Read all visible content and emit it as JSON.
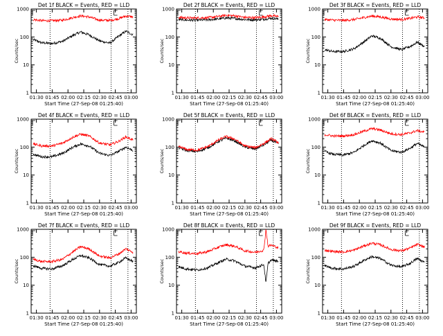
{
  "page": {
    "background": "#ffffff",
    "axis_color": "#000000",
    "events_color": "#000000",
    "lld_color": "#ff0000"
  },
  "chart_data": [
    {
      "type": "line",
      "title": "Det 1f BLACK = Events, RED = LLD",
      "xlabel": "Start Time (27-Sep-08 01:25:40)",
      "ylabel": "Counts/sec",
      "xticks": [
        "01:30",
        "01:45",
        "02:00",
        "02:15",
        "02:30",
        "02:45",
        "03:00"
      ],
      "yticks": [
        "1",
        "10",
        "100",
        "1000"
      ],
      "ylim": [
        1,
        1000
      ],
      "yscale": "log",
      "dotted_markers": [
        "01:43",
        "02:41",
        "02:57"
      ],
      "flag_marker": "02:45",
      "x": [
        "01:27",
        "01:35",
        "01:45",
        "01:55",
        "02:05",
        "02:12",
        "02:20",
        "02:30",
        "02:40",
        "02:48",
        "02:55",
        "03:02"
      ],
      "series": [
        {
          "name": "Events",
          "color": "#000000",
          "values": [
            80,
            62,
            58,
            70,
            115,
            150,
            120,
            72,
            60,
            105,
            160,
            120
          ]
        },
        {
          "name": "LLD",
          "color": "#ff0000",
          "values": [
            420,
            380,
            380,
            400,
            500,
            570,
            520,
            400,
            390,
            450,
            560,
            520
          ]
        }
      ]
    },
    {
      "type": "line",
      "title": "Det 2f BLACK = Events, RED = LLD",
      "xlabel": "Start Time (27-Sep-08 01:25:40)",
      "ylabel": "Counts/sec",
      "xticks": [
        "01:30",
        "01:45",
        "02:00",
        "02:15",
        "02:30",
        "02:45",
        "03:00"
      ],
      "yticks": [
        "1",
        "10",
        "100",
        "1000"
      ],
      "ylim": [
        1,
        1000
      ],
      "yscale": "log",
      "dotted_markers": [
        "01:43",
        "02:41",
        "02:57"
      ],
      "flag_marker": "02:45",
      "x": [
        "01:27",
        "01:35",
        "01:45",
        "01:55",
        "02:05",
        "02:12",
        "02:20",
        "02:30",
        "02:40",
        "02:48",
        "02:55",
        "03:02"
      ],
      "series": [
        {
          "name": "Events",
          "color": "#000000",
          "values": [
            420,
            400,
            400,
            410,
            440,
            480,
            460,
            420,
            410,
            430,
            470,
            440
          ]
        },
        {
          "name": "LLD",
          "color": "#ff0000",
          "values": [
            500,
            480,
            480,
            490,
            540,
            600,
            570,
            500,
            490,
            520,
            580,
            530
          ]
        }
      ]
    },
    {
      "type": "line",
      "title": "Det 3f BLACK = Events, RED = LLD",
      "xlabel": "Start Time (27-Sep-08 01:25:40)",
      "ylabel": "Counts/sec",
      "xticks": [
        "01:30",
        "01:45",
        "02:00",
        "02:15",
        "02:30",
        "02:45",
        "03:00"
      ],
      "yticks": [
        "1",
        "10",
        "100",
        "1000"
      ],
      "ylim": [
        1,
        1000
      ],
      "yscale": "log",
      "dotted_markers": [
        "01:43",
        "02:41",
        "02:57"
      ],
      "flag_marker": "02:45",
      "x": [
        "01:27",
        "01:35",
        "01:45",
        "01:55",
        "02:05",
        "02:12",
        "02:20",
        "02:30",
        "02:40",
        "02:48",
        "02:55",
        "03:02"
      ],
      "series": [
        {
          "name": "Events",
          "color": "#000000",
          "values": [
            35,
            30,
            30,
            38,
            70,
            110,
            90,
            45,
            35,
            45,
            65,
            45
          ]
        },
        {
          "name": "LLD",
          "color": "#ff0000",
          "values": [
            420,
            400,
            390,
            420,
            500,
            560,
            520,
            440,
            420,
            460,
            520,
            480
          ]
        }
      ]
    },
    {
      "type": "line",
      "title": "Det 4f BLACK = Events, RED = LLD",
      "xlabel": "Start Time (27-Sep-08 01:25:40)",
      "ylabel": "Counts/sec",
      "xticks": [
        "01:30",
        "01:45",
        "02:00",
        "02:15",
        "02:30",
        "02:45",
        "03:00"
      ],
      "yticks": [
        "1",
        "10",
        "100",
        "1000"
      ],
      "ylim": [
        1,
        1000
      ],
      "yscale": "log",
      "dotted_markers": [
        "01:43",
        "02:41",
        "02:57"
      ],
      "flag_marker": "02:45",
      "x": [
        "01:27",
        "01:35",
        "01:45",
        "01:55",
        "02:05",
        "02:12",
        "02:20",
        "02:30",
        "02:40",
        "02:48",
        "02:55",
        "03:02"
      ],
      "series": [
        {
          "name": "Events",
          "color": "#000000",
          "values": [
            55,
            45,
            45,
            60,
            100,
            130,
            110,
            60,
            50,
            70,
            100,
            75
          ]
        },
        {
          "name": "LLD",
          "color": "#ff0000",
          "values": [
            130,
            110,
            110,
            140,
            230,
            290,
            250,
            140,
            120,
            160,
            230,
            180
          ]
        }
      ]
    },
    {
      "type": "line",
      "title": "Det 5f BLACK = Events, RED = LLD",
      "xlabel": "Start Time (27-Sep-08 01:25:40)",
      "ylabel": "Counts/sec",
      "xticks": [
        "01:30",
        "01:45",
        "02:00",
        "02:15",
        "02:30",
        "02:45",
        "03:00"
      ],
      "yticks": [
        "1",
        "10",
        "100",
        "1000"
      ],
      "ylim": [
        1,
        1000
      ],
      "yscale": "log",
      "dotted_markers": [
        "01:43",
        "02:41",
        "02:57"
      ],
      "flag_marker": "02:45",
      "x": [
        "01:27",
        "01:35",
        "01:45",
        "01:55",
        "02:05",
        "02:12",
        "02:20",
        "02:30",
        "02:40",
        "02:48",
        "02:55",
        "03:02"
      ],
      "series": [
        {
          "name": "Events",
          "color": "#000000",
          "values": [
            95,
            75,
            70,
            95,
            160,
            210,
            170,
            100,
            85,
            120,
            180,
            130
          ]
        },
        {
          "name": "LLD",
          "color": "#ff0000",
          "values": [
            105,
            82,
            78,
            105,
            180,
            240,
            195,
            110,
            95,
            135,
            200,
            145
          ]
        }
      ]
    },
    {
      "type": "line",
      "title": "Det 6f BLACK = Events, RED = LLD",
      "xlabel": "Start Time (27-Sep-08 01:25:40)",
      "ylabel": "Counts/sec",
      "xticks": [
        "01:30",
        "01:45",
        "02:00",
        "02:15",
        "02:30",
        "02:45",
        "03:00"
      ],
      "yticks": [
        "1",
        "10",
        "100",
        "1000"
      ],
      "ylim": [
        1,
        1000
      ],
      "yscale": "log",
      "dotted_markers": [
        "01:43",
        "02:41",
        "02:57"
      ],
      "flag_marker": "02:45",
      "x": [
        "01:27",
        "01:35",
        "01:45",
        "01:55",
        "02:05",
        "02:12",
        "02:20",
        "02:30",
        "02:40",
        "02:48",
        "02:55",
        "03:02"
      ],
      "series": [
        {
          "name": "Events",
          "color": "#000000",
          "values": [
            70,
            55,
            52,
            65,
            120,
            170,
            140,
            75,
            65,
            90,
            135,
            100
          ]
        },
        {
          "name": "LLD",
          "color": "#ff0000",
          "values": [
            280,
            250,
            250,
            280,
            380,
            460,
            410,
            300,
            280,
            320,
            390,
            340
          ]
        }
      ]
    },
    {
      "type": "line",
      "title": "Det 7f BLACK = Events, RED = LLD",
      "xlabel": "Start Time (27-Sep-08 01:25:40)",
      "ylabel": "Counts/sec",
      "xticks": [
        "01:30",
        "01:45",
        "02:00",
        "02:15",
        "02:30",
        "02:45",
        "03:00"
      ],
      "yticks": [
        "1",
        "10",
        "100",
        "1000"
      ],
      "ylim": [
        1,
        1000
      ],
      "yscale": "log",
      "dotted_markers": [
        "01:43",
        "02:41",
        "02:57"
      ],
      "flag_marker": "02:45",
      "x": [
        "01:27",
        "01:35",
        "01:45",
        "01:55",
        "02:05",
        "02:12",
        "02:20",
        "02:30",
        "02:40",
        "02:48",
        "02:55",
        "03:02"
      ],
      "series": [
        {
          "name": "Events",
          "color": "#000000",
          "values": [
            50,
            40,
            38,
            50,
            85,
            115,
            95,
            55,
            48,
            65,
            95,
            70
          ]
        },
        {
          "name": "LLD",
          "color": "#ff0000",
          "values": [
            85,
            70,
            70,
            85,
            160,
            240,
            200,
            110,
            95,
            130,
            200,
            150
          ]
        }
      ]
    },
    {
      "type": "line",
      "title": "Det 8f BLACK = Events, RED = LLD",
      "xlabel": "Start Time (27-Sep-08 01:25:40)",
      "ylabel": "Counts/sec",
      "xticks": [
        "01:30",
        "01:45",
        "02:00",
        "02:15",
        "02:30",
        "02:45",
        "03:00"
      ],
      "yticks": [
        "1",
        "10",
        "100",
        "1000"
      ],
      "ylim": [
        1,
        1000
      ],
      "yscale": "log",
      "dotted_markers": [
        "01:43",
        "02:41",
        "02:57"
      ],
      "flag_marker": "02:45",
      "x": [
        "01:27",
        "01:35",
        "01:45",
        "01:55",
        "02:05",
        "02:12",
        "02:20",
        "02:30",
        "02:40",
        "02:48",
        "02:50",
        "02:52",
        "02:55",
        "03:02"
      ],
      "series": [
        {
          "name": "Events",
          "color": "#000000",
          "values": [
            45,
            38,
            35,
            42,
            65,
            85,
            75,
            48,
            42,
            55,
            12,
            60,
            80,
            70
          ]
        },
        {
          "name": "LLD",
          "color": "#ff0000",
          "values": [
            160,
            140,
            135,
            160,
            230,
            280,
            250,
            170,
            150,
            180,
            1000,
            250,
            270,
            220
          ]
        }
      ]
    },
    {
      "type": "line",
      "title": "Det 9f BLACK = Events, RED = LLD",
      "xlabel": "Start Time (27-Sep-08 01:25:40)",
      "ylabel": "Counts/sec",
      "xticks": [
        "01:30",
        "01:45",
        "02:00",
        "02:15",
        "02:30",
        "02:45",
        "03:00"
      ],
      "yticks": [
        "1",
        "10",
        "100",
        "1000"
      ],
      "ylim": [
        1,
        1000
      ],
      "yscale": "log",
      "dotted_markers": [
        "01:43",
        "02:41",
        "02:57"
      ],
      "flag_marker": "02:45",
      "x": [
        "01:27",
        "01:35",
        "01:45",
        "01:55",
        "02:05",
        "02:12",
        "02:20",
        "02:30",
        "02:40",
        "02:48",
        "02:55",
        "03:02"
      ],
      "series": [
        {
          "name": "Events",
          "color": "#000000",
          "values": [
            50,
            40,
            38,
            48,
            80,
            105,
            90,
            52,
            45,
            60,
            90,
            65
          ]
        },
        {
          "name": "LLD",
          "color": "#ff0000",
          "values": [
            180,
            160,
            155,
            180,
            260,
            320,
            280,
            190,
            170,
            210,
            290,
            230
          ]
        }
      ]
    }
  ]
}
